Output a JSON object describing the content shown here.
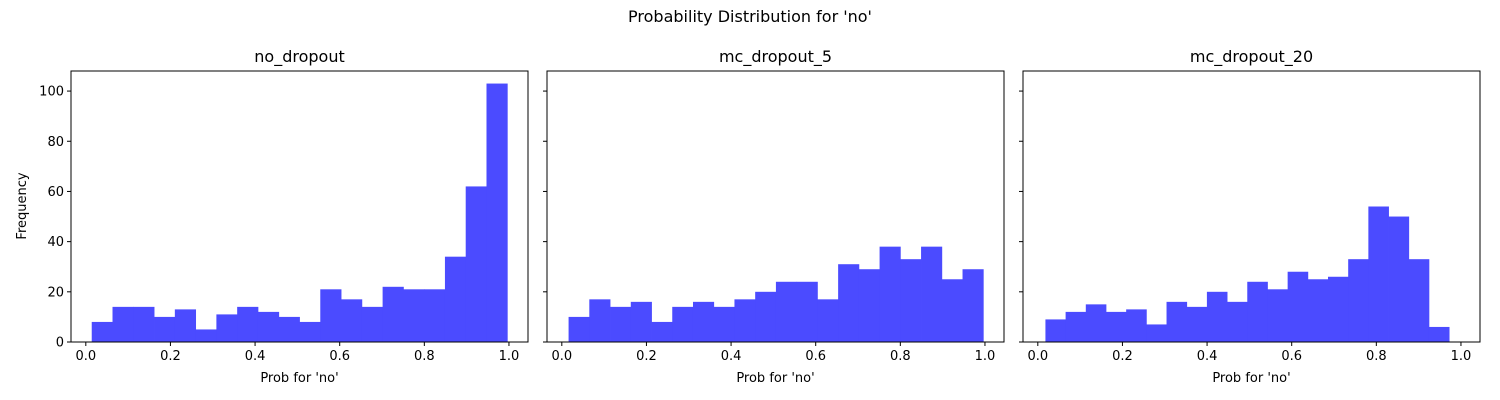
{
  "figure": {
    "suptitle": "Probability Distribution for 'no'"
  },
  "colors": {
    "bar": "#4b4bff",
    "axis": "#000000",
    "background": "#ffffff"
  },
  "chart_data": [
    {
      "type": "bar",
      "title": "no_dropout",
      "xlabel": "Prob for 'no'",
      "ylabel": "Frequency",
      "xlim": [
        -0.035,
        1.045
      ],
      "ylim": [
        0,
        108
      ],
      "xticks": [
        0.0,
        0.2,
        0.4,
        0.6,
        0.8,
        1.0
      ],
      "xtick_labels": [
        "0.0",
        "0.2",
        "0.4",
        "0.6",
        "0.8",
        "1.0"
      ],
      "yticks": [
        0,
        20,
        40,
        60,
        80,
        100
      ],
      "ytick_labels": [
        "0",
        "20",
        "40",
        "60",
        "80",
        "100"
      ],
      "bin_start": 0.014,
      "bin_end": 0.996,
      "values": [
        8,
        14,
        14,
        10,
        13,
        5,
        11,
        14,
        12,
        10,
        8,
        21,
        17,
        14,
        22,
        21,
        21,
        34,
        62,
        103
      ]
    },
    {
      "type": "bar",
      "title": "mc_dropout_5",
      "xlabel": "Prob for 'no'",
      "ylabel": "",
      "xlim": [
        -0.035,
        1.045
      ],
      "ylim": [
        0,
        108
      ],
      "xticks": [
        0.0,
        0.2,
        0.4,
        0.6,
        0.8,
        1.0
      ],
      "xtick_labels": [
        "0.0",
        "0.2",
        "0.4",
        "0.6",
        "0.8",
        "1.0"
      ],
      "yticks": [
        0,
        20,
        40,
        60,
        80,
        100
      ],
      "ytick_labels": [],
      "bin_start": 0.016,
      "bin_end": 0.996,
      "values": [
        10,
        17,
        14,
        16,
        8,
        14,
        16,
        14,
        17,
        20,
        24,
        24,
        17,
        31,
        29,
        38,
        33,
        38,
        25,
        29
      ]
    },
    {
      "type": "bar",
      "title": "mc_dropout_20",
      "xlabel": "Prob for 'no'",
      "ylabel": "",
      "xlim": [
        -0.035,
        1.045
      ],
      "ylim": [
        0,
        108
      ],
      "xticks": [
        0.0,
        0.2,
        0.4,
        0.6,
        0.8,
        1.0
      ],
      "xtick_labels": [
        "0.0",
        "0.2",
        "0.4",
        "0.6",
        "0.8",
        "1.0"
      ],
      "yticks": [
        0,
        20,
        40,
        60,
        80,
        100
      ],
      "ytick_labels": [],
      "bin_start": 0.018,
      "bin_end": 0.972,
      "values": [
        9,
        12,
        15,
        12,
        13,
        7,
        16,
        14,
        20,
        16,
        24,
        21,
        28,
        25,
        26,
        33,
        54,
        50,
        33,
        6
      ]
    }
  ]
}
